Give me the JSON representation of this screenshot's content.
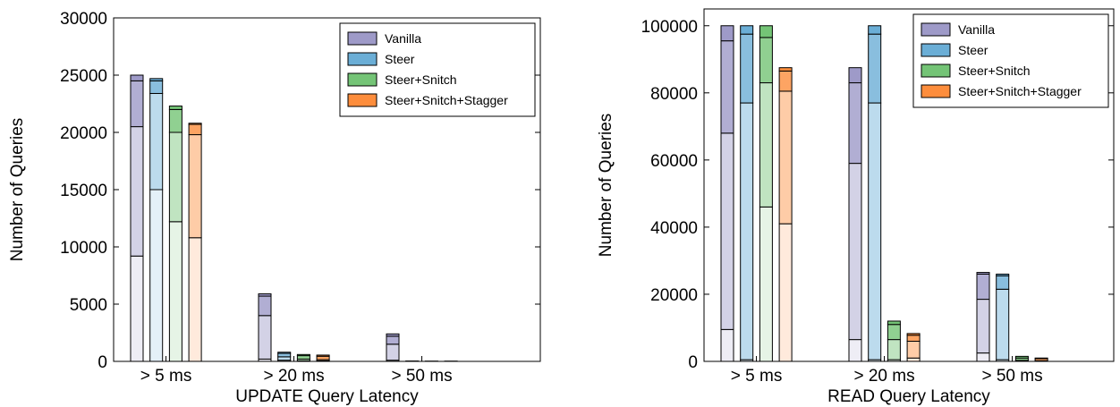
{
  "chart_data": [
    {
      "type": "bar",
      "subtype": "stacked-grouped",
      "xlabel": "UPDATE Query Latency",
      "ylabel": "Number of Queries",
      "ylim": [
        0,
        30000
      ],
      "yticks": [
        0,
        5000,
        10000,
        15000,
        20000,
        25000,
        30000
      ],
      "categories": [
        "> 5 ms",
        "> 20 ms",
        "> 50 ms"
      ],
      "legend": {
        "placement": "top-right"
      },
      "series": [
        {
          "name": "Vanilla",
          "color": "#9e9ac8",
          "stacks": [
            [
              9200,
              20500,
              24500,
              25000
            ],
            [
              200,
              4000,
              5700,
              5900
            ],
            [
              100,
              1500,
              2200,
              2400
            ]
          ]
        },
        {
          "name": "Steer",
          "color": "#6baed6",
          "stacks": [
            [
              15000,
              23400,
              24500,
              24700
            ],
            [
              100,
              400,
              700,
              800
            ],
            [
              0,
              0,
              20,
              30
            ]
          ]
        },
        {
          "name": "Steer+Snitch",
          "color": "#74c476",
          "stacks": [
            [
              12200,
              20000,
              22000,
              22300
            ],
            [
              50,
              200,
              500,
              600
            ],
            [
              0,
              0,
              10,
              20
            ]
          ]
        },
        {
          "name": "Steer+Snitch+Stagger",
          "color": "#fd8d3c",
          "stacks": [
            [
              10800,
              19800,
              20700,
              20800
            ],
            [
              50,
              150,
              450,
              550
            ],
            [
              0,
              0,
              10,
              20
            ]
          ]
        }
      ]
    },
    {
      "type": "bar",
      "subtype": "stacked-grouped",
      "xlabel": "READ Query Latency",
      "ylabel": "Number of Queries",
      "ylim": [
        0,
        105000
      ],
      "yticks": [
        0,
        20000,
        40000,
        60000,
        80000,
        100000
      ],
      "categories": [
        "> 5 ms",
        "> 20 ms",
        "> 50 ms"
      ],
      "legend": {
        "placement": "top-right"
      },
      "series": [
        {
          "name": "Vanilla",
          "color": "#9e9ac8",
          "stacks": [
            [
              9500,
              68000,
              95500,
              100000
            ],
            [
              6500,
              59000,
              83000,
              87500
            ],
            [
              2500,
              18500,
              26000,
              26500
            ]
          ]
        },
        {
          "name": "Steer",
          "color": "#6baed6",
          "stacks": [
            [
              500,
              77000,
              97500,
              100000
            ],
            [
              500,
              77000,
              97500,
              100000
            ],
            [
              500,
              21500,
              25500,
              26000
            ]
          ]
        },
        {
          "name": "Steer+Snitch",
          "color": "#74c476",
          "stacks": [
            [
              46000,
              83000,
              96500,
              100000
            ],
            [
              500,
              6500,
              11000,
              12000
            ],
            [
              0,
              300,
              1000,
              1500
            ]
          ]
        },
        {
          "name": "Steer+Snitch+Stagger",
          "color": "#fd8d3c",
          "stacks": [
            [
              41000,
              80500,
              86500,
              87500
            ],
            [
              1000,
              6000,
              7800,
              8300
            ],
            [
              0,
              200,
              800,
              1000
            ]
          ]
        }
      ]
    }
  ]
}
